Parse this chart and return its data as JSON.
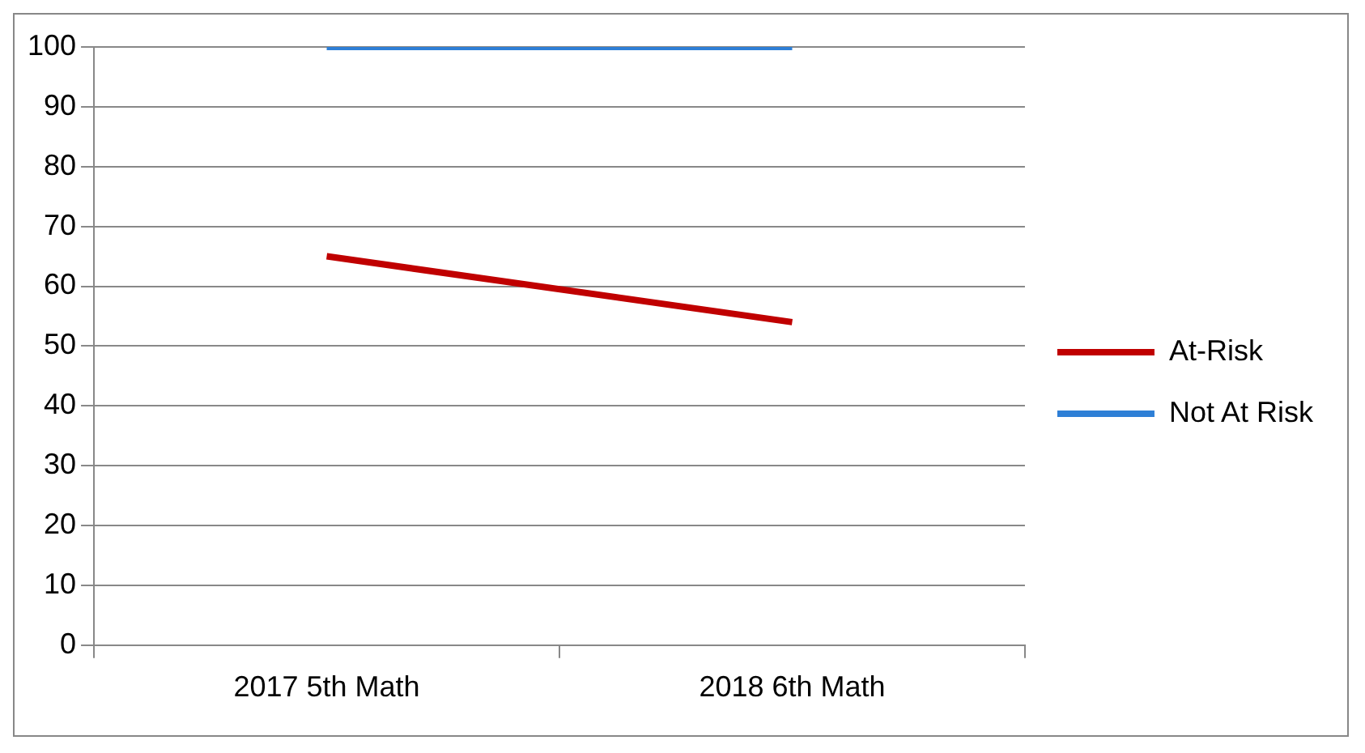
{
  "chart_data": {
    "type": "line",
    "categories": [
      "2017 5th Math",
      "2018 6th Math"
    ],
    "series": [
      {
        "name": "At-Risk",
        "color": "#c00000",
        "values": [
          65,
          54
        ]
      },
      {
        "name": "Not At Risk",
        "color": "#2e7fd6",
        "values": [
          100,
          100
        ]
      }
    ],
    "ylim": [
      0,
      100
    ],
    "yticks": [
      0,
      10,
      20,
      30,
      40,
      50,
      60,
      70,
      80,
      90,
      100
    ],
    "grid": "y",
    "legend": "right",
    "marker": "none",
    "line_style": "solid"
  }
}
